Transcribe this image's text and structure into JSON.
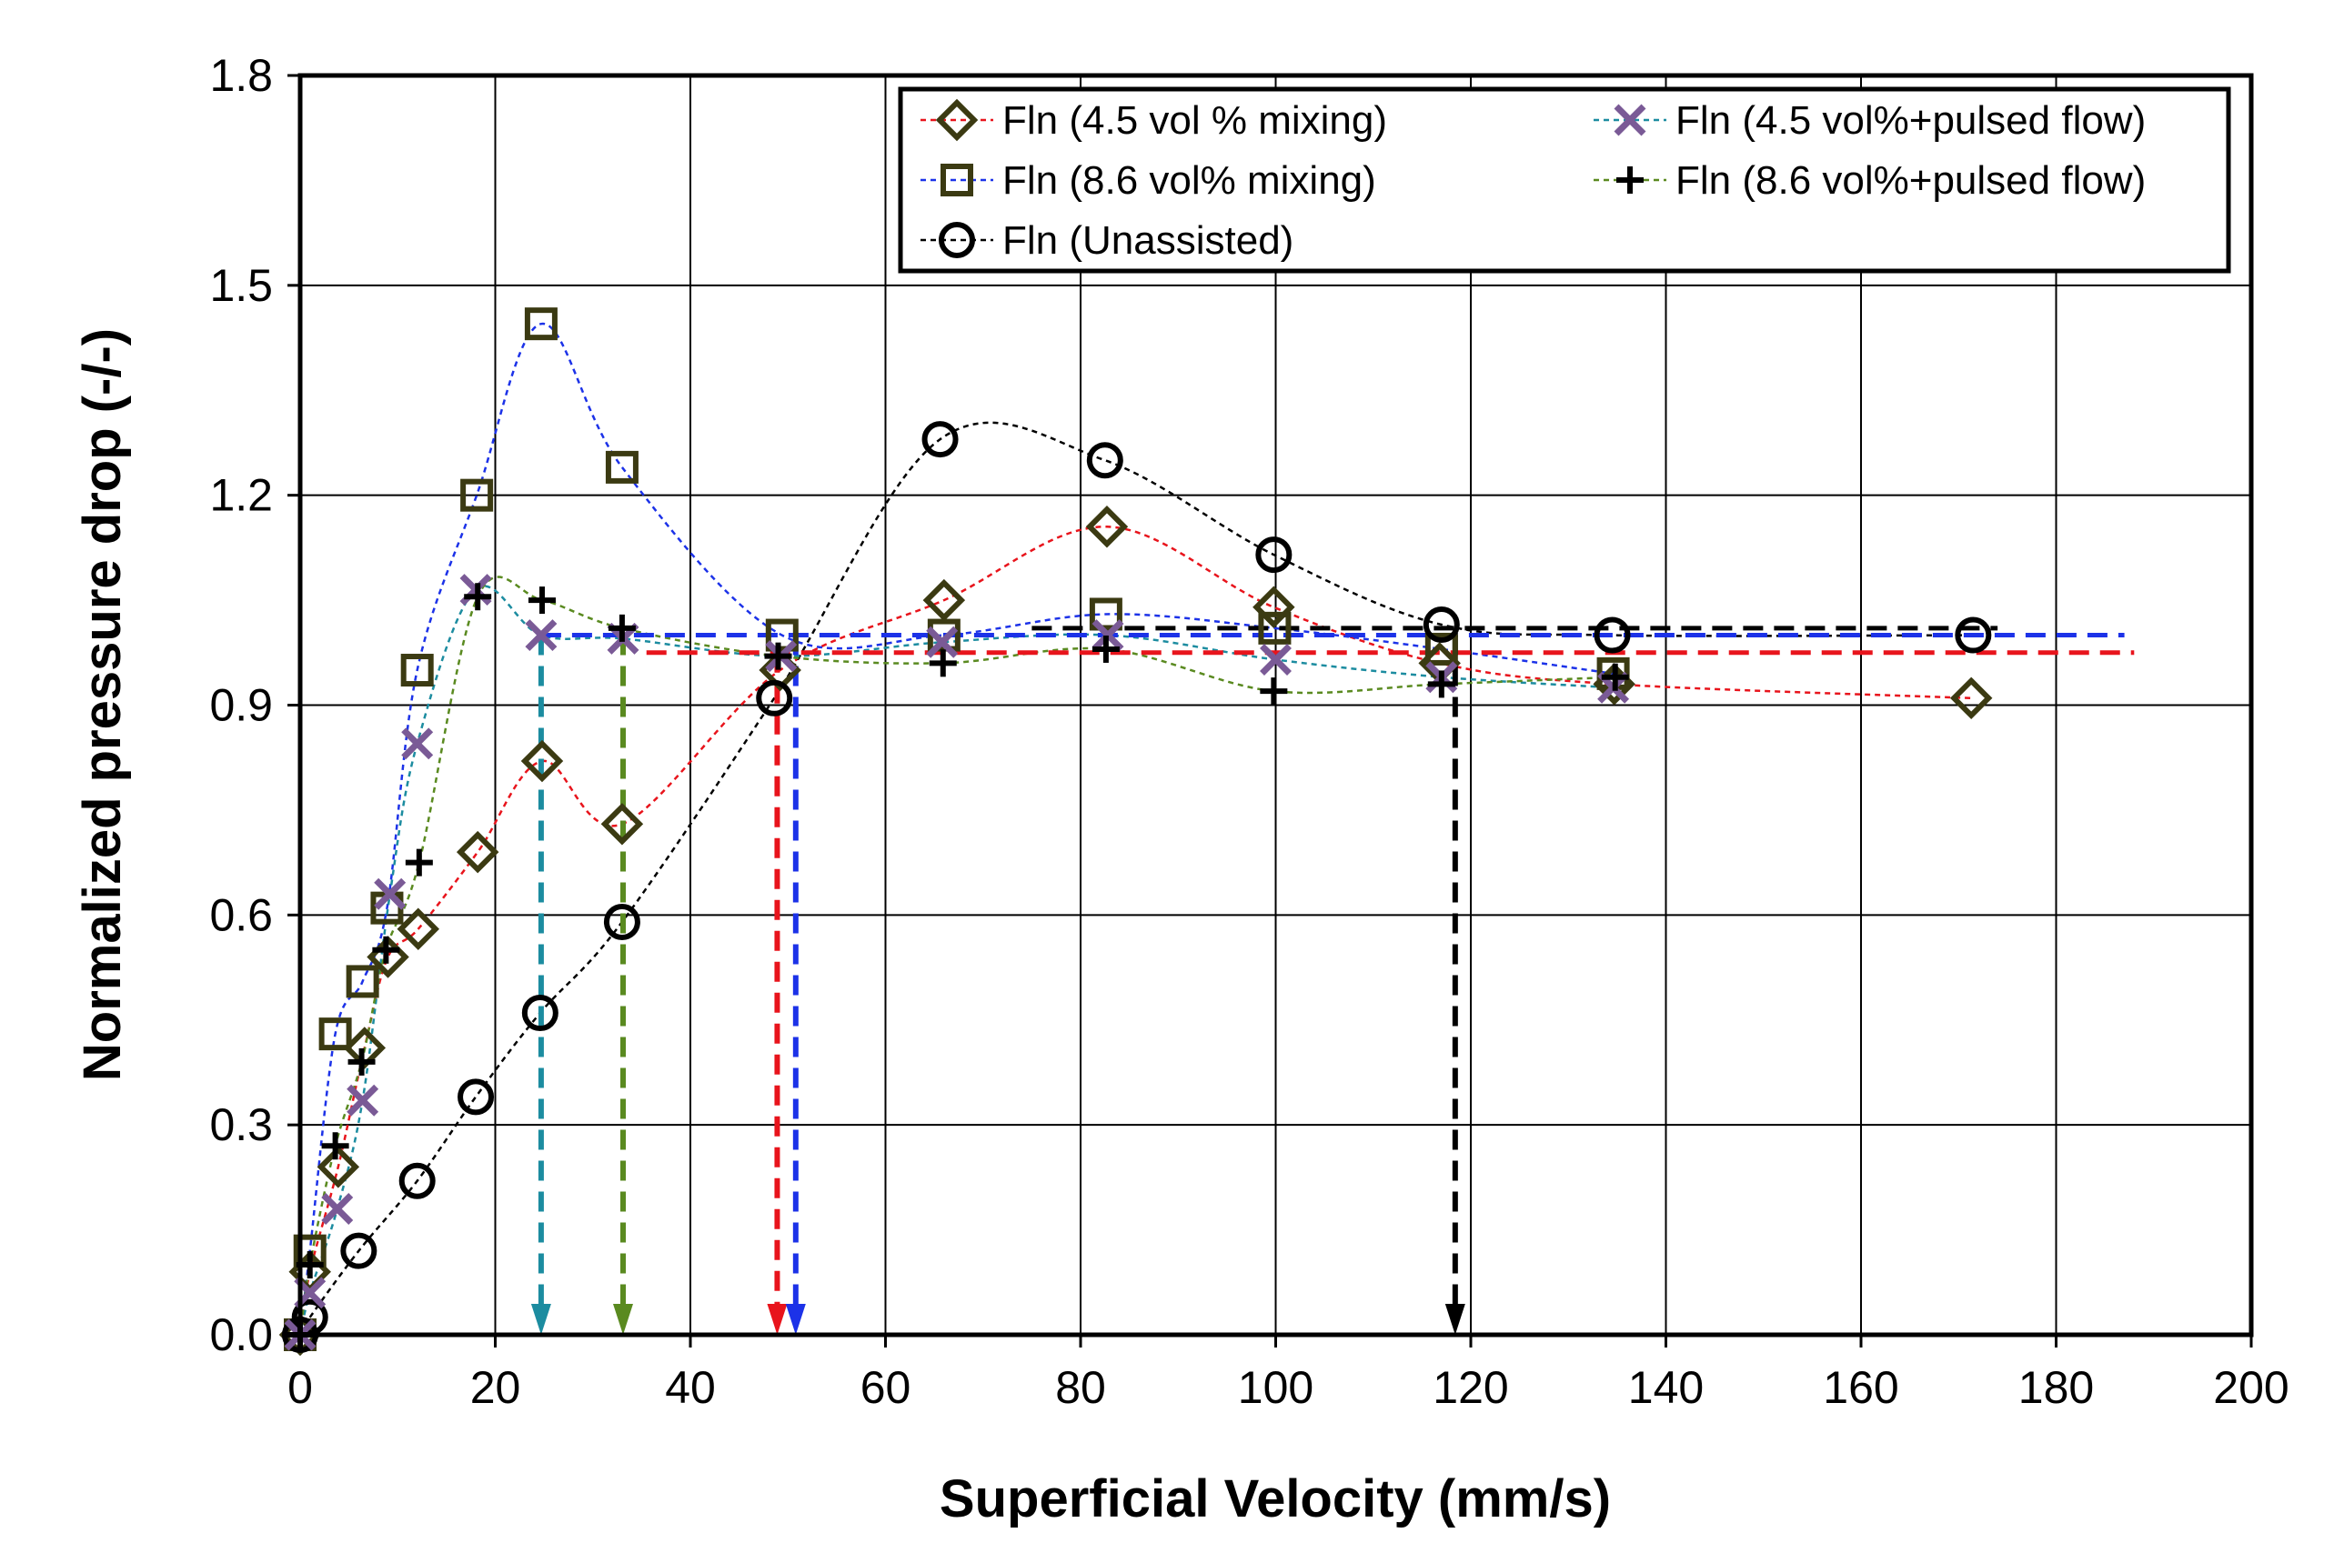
{
  "chart_data": {
    "type": "scatter",
    "title": "",
    "xlabel": "Superficial Velocity (mm/s)",
    "ylabel": "Normalized pressure drop (-/-)",
    "xlim": [
      0,
      200
    ],
    "ylim": [
      0,
      1.8
    ],
    "x_ticks": [
      "0",
      "20",
      "40",
      "60",
      "80",
      "100",
      "120",
      "140",
      "160",
      "180",
      "200"
    ],
    "y_ticks": [
      "0.0",
      "0.3",
      "0.6",
      "0.9",
      "1.2",
      "1.5",
      "1.8"
    ],
    "grid": true,
    "legend_position": "top-right",
    "series": [
      {
        "name": "Fln (4.5 vol % mixing)",
        "marker": "diamond",
        "line_color": "#e8141c",
        "marker_color": "#3b3a12",
        "x": [
          0,
          1.0,
          3.9,
          6.6,
          9.0,
          12.1,
          18.2,
          24.8,
          33.0,
          49.2,
          66.0,
          82.7,
          99.8,
          116.8,
          134.7,
          171.3
        ],
        "y": [
          0,
          0.09,
          0.24,
          0.41,
          0.54,
          0.58,
          0.69,
          0.82,
          0.73,
          0.95,
          1.05,
          1.155,
          1.04,
          0.96,
          0.93,
          0.91
        ]
      },
      {
        "name": "Fln (8.6 vol% mixing)",
        "marker": "square",
        "line_color": "#1c32e8",
        "marker_color": "#3b3a12",
        "x": [
          0,
          1.0,
          3.6,
          6.4,
          8.9,
          12.0,
          18.1,
          24.7,
          33.0,
          49.4,
          66.0,
          82.6,
          99.9,
          117.0,
          134.6
        ],
        "y": [
          0,
          0.12,
          0.43,
          0.505,
          0.61,
          0.95,
          1.2,
          1.445,
          1.24,
          1.0,
          1.0,
          1.03,
          1.01,
          0.98,
          0.945
        ]
      },
      {
        "name": "Fln (Unassisted)",
        "marker": "circle",
        "line_color": "#000000",
        "marker_color": "#000000",
        "x": [
          0,
          1.0,
          6.0,
          12.0,
          18.0,
          24.6,
          33.0,
          48.6,
          65.6,
          82.5,
          99.8,
          117.0,
          134.5,
          171.5
        ],
        "y": [
          0,
          0.025,
          0.12,
          0.22,
          0.34,
          0.46,
          0.59,
          0.91,
          1.28,
          1.25,
          1.115,
          1.015,
          1.0,
          1.0
        ]
      },
      {
        "name": "Fln (4.5 vol%+pulsed flow)",
        "marker": "x",
        "line_color": "#1c8ca0",
        "marker_color": "#7a5a96",
        "x": [
          0,
          1.0,
          3.8,
          6.4,
          9.2,
          12.0,
          18.0,
          24.7,
          33.1,
          49.3,
          65.8,
          82.8,
          100.0,
          117.0,
          134.6
        ],
        "y": [
          0,
          0.06,
          0.18,
          0.335,
          0.63,
          0.845,
          1.065,
          1.0,
          0.995,
          0.97,
          0.99,
          1.0,
          0.965,
          0.94,
          0.925
        ]
      },
      {
        "name": "Fln (8.6 vol%+pulsed flow)",
        "marker": "plus",
        "line_color": "#5a8a20",
        "marker_color": "#000000",
        "x": [
          0,
          1.0,
          3.6,
          6.3,
          8.8,
          12.2,
          18.2,
          24.8,
          33.0,
          49.0,
          65.9,
          82.6,
          99.8,
          117.0,
          134.8
        ],
        "y": [
          0,
          0.1,
          0.27,
          0.39,
          0.55,
          0.675,
          1.055,
          1.05,
          1.01,
          0.97,
          0.96,
          0.98,
          0.92,
          0.93,
          0.94
        ]
      }
    ],
    "reference_lines": [
      {
        "orientation": "horizontal",
        "y": 1.0,
        "x_from": 24.7,
        "x_to": 187,
        "color": "#1c32e8"
      },
      {
        "orientation": "horizontal",
        "y": 0.975,
        "x_from": 35.5,
        "x_to": 188,
        "color": "#e8141c"
      },
      {
        "orientation": "horizontal",
        "y": 1.01,
        "x_from": 75,
        "x_to": 174,
        "color": "#000000"
      }
    ],
    "arrows": [
      {
        "x": 24.7,
        "y_from": 1.0,
        "color": "#1c8ca0"
      },
      {
        "x": 33.1,
        "y_from": 1.0,
        "color": "#5a8a20"
      },
      {
        "x": 48.9,
        "y_from": 0.975,
        "color": "#e8141c"
      },
      {
        "x": 50.8,
        "y_from": 1.0,
        "color": "#1c32e8"
      },
      {
        "x": 118.4,
        "y_from": 1.0,
        "color": "#000000"
      }
    ]
  }
}
